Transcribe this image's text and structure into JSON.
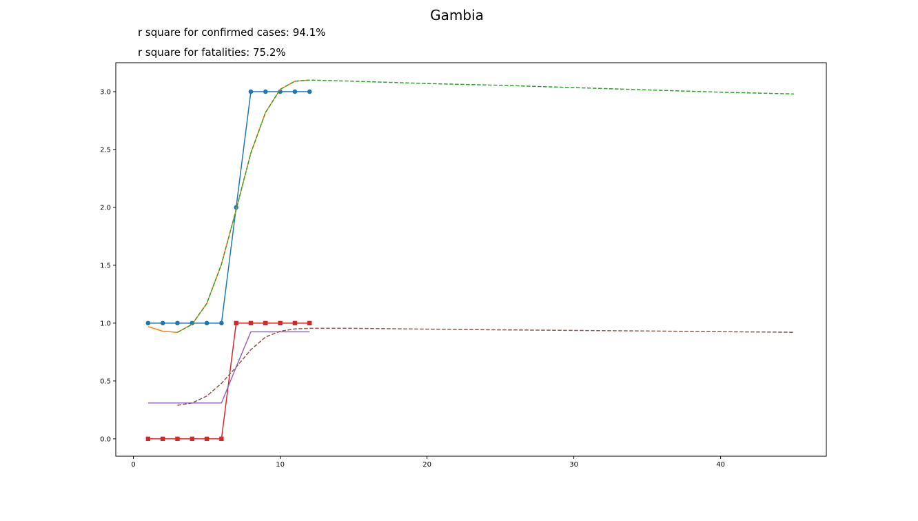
{
  "chart_data": {
    "type": "line",
    "title": "Gambia",
    "annotations": [
      "r square for confirmed cases: 94.1%",
      "r square for fatalities: 75.2%"
    ],
    "xlabel": "",
    "ylabel": "",
    "xlim": [
      -1.2,
      47.2
    ],
    "ylim": [
      -0.15,
      3.25
    ],
    "x_ticks": [
      0,
      10,
      20,
      30,
      40
    ],
    "y_ticks": [
      0.0,
      0.5,
      1.0,
      1.5,
      2.0,
      2.5,
      3.0
    ],
    "x_tick_labels": [
      "0",
      "10",
      "20",
      "30",
      "40"
    ],
    "y_tick_labels": [
      "0.0",
      "0.5",
      "1.0",
      "1.5",
      "2.0",
      "2.5",
      "3.0"
    ],
    "grid": false,
    "legend": "none",
    "series": [
      {
        "color": "#1f77b4",
        "style": "solid",
        "marker": "circle",
        "x": [
          1,
          2,
          3,
          4,
          5,
          6,
          7,
          8,
          9,
          10,
          11,
          12
        ],
        "y": [
          1,
          1,
          1,
          1,
          1,
          1,
          2,
          3,
          3,
          3,
          3,
          3
        ]
      },
      {
        "color": "#ff7f0e",
        "style": "solid",
        "marker": "none",
        "x": [
          1,
          2,
          3,
          4,
          5,
          6,
          7,
          8,
          9,
          10,
          11,
          12
        ],
        "y": [
          0.97,
          0.93,
          0.92,
          0.99,
          1.17,
          1.51,
          1.98,
          2.47,
          2.82,
          3.02,
          3.09,
          3.1
        ]
      },
      {
        "color": "#2ca02c",
        "style": "dashed",
        "marker": "none",
        "x": [
          3,
          4,
          5,
          6,
          7,
          8,
          9,
          10,
          11,
          12,
          15,
          20,
          25,
          30,
          35,
          40,
          45
        ],
        "y": [
          0.92,
          0.99,
          1.17,
          1.51,
          1.98,
          2.47,
          2.82,
          3.02,
          3.09,
          3.1,
          3.09,
          3.07,
          3.055,
          3.035,
          3.015,
          2.995,
          2.98
        ]
      },
      {
        "color": "#d62728",
        "style": "solid",
        "marker": "square",
        "x": [
          1,
          2,
          3,
          4,
          5,
          6,
          7,
          8,
          9,
          10,
          11,
          12
        ],
        "y": [
          0,
          0,
          0,
          0,
          0,
          0,
          1,
          1,
          1,
          1,
          1,
          1
        ]
      },
      {
        "color": "#9467bd",
        "style": "solid",
        "marker": "none",
        "x": [
          1,
          2,
          3,
          4,
          5,
          6,
          7,
          8,
          9,
          10,
          11,
          12
        ],
        "y": [
          0.31,
          0.31,
          0.31,
          0.31,
          0.31,
          0.31,
          0.62,
          0.925,
          0.925,
          0.925,
          0.925,
          0.925
        ]
      },
      {
        "color": "#8c564b",
        "style": "dashed",
        "marker": "none",
        "x": [
          3,
          4,
          5,
          6,
          7,
          8,
          9,
          10,
          11,
          12,
          15,
          20,
          25,
          30,
          35,
          40,
          45
        ],
        "y": [
          0.29,
          0.31,
          0.37,
          0.48,
          0.62,
          0.77,
          0.88,
          0.93,
          0.95,
          0.955,
          0.955,
          0.948,
          0.942,
          0.937,
          0.932,
          0.926,
          0.921
        ]
      }
    ]
  }
}
